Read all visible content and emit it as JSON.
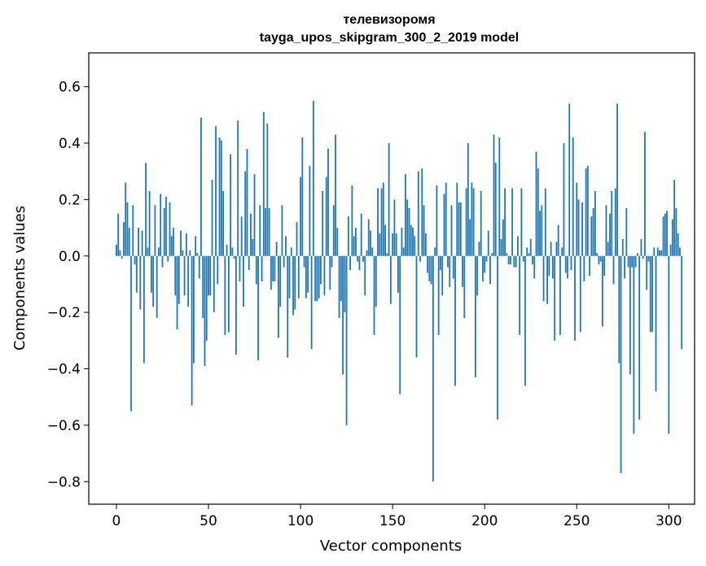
{
  "chart_data": {
    "type": "bar",
    "title_line1": "телевизоромя",
    "title_line2": "tayga_upos_skipgram_300_2_2019 model",
    "xlabel": "Vector components",
    "ylabel": "Components values",
    "xlim": [
      -15,
      314
    ],
    "ylim": [
      -0.88,
      0.72
    ],
    "xticks": [
      0,
      50,
      100,
      150,
      200,
      250,
      300
    ],
    "xtick_labels": [
      "0",
      "50",
      "100",
      "150",
      "200",
      "250",
      "300"
    ],
    "yticks": [
      -0.8,
      -0.6,
      -0.4,
      -0.2,
      0.0,
      0.2,
      0.4,
      0.6
    ],
    "ytick_labels": [
      "−0.8",
      "−0.6",
      "−0.4",
      "−0.2",
      "0.0",
      "0.2",
      "0.4",
      "0.6"
    ],
    "bar_color": "#1f77b4",
    "grid": false,
    "values": [
      0.04,
      0.15,
      0.02,
      -0.01,
      0.12,
      0.26,
      0.19,
      0.1,
      -0.55,
      0.18,
      -0.03,
      -0.13,
      0.1,
      -0.19,
      0.09,
      -0.38,
      0.33,
      0.03,
      0.23,
      -0.13,
      -0.18,
      0.18,
      -0.22,
      0.03,
      0.22,
      -0.04,
      0.17,
      0.21,
      -0.02,
      0.19,
      0.07,
      0.1,
      -0.14,
      -0.26,
      -0.17,
      0.09,
      0.02,
      -0.14,
      0.08,
      -0.18,
      0.02,
      -0.53,
      -0.38,
      0.07,
      0.01,
      -0.08,
      0.49,
      -0.22,
      -0.39,
      -0.3,
      -0.14,
      -0.14,
      0.27,
      -0.2,
      0.46,
      -0.1,
      0.42,
      0.41,
      0.23,
      -0.28,
      0.04,
      -0.27,
      0.36,
      0.03,
      -0.01,
      -0.35,
      0.48,
      -0.09,
      0.14,
      -0.18,
      0.3,
      0.38,
      -0.05,
      0.15,
      0.06,
      0.29,
      -0.1,
      -0.37,
      0.18,
      -0.09,
      0.51,
      0.17,
      0.47,
      0.17,
      -0.12,
      -0.09,
      -0.09,
      0.05,
      -0.29,
      -0.18,
      0.18,
      -0.04,
      0.07,
      -0.36,
      -0.15,
      0.03,
      -0.21,
      -0.19,
      0.12,
      -0.15,
      0.28,
      0.42,
      -0.04,
      -0.15,
      -0.13,
      0.32,
      -0.33,
      0.55,
      -0.16,
      -0.16,
      -0.15,
      -0.1,
      0.23,
      -0.14,
      0.28,
      0.38,
      -0.12,
      -0.04,
      0.18,
      0.43,
      0.1,
      -0.22,
      -0.16,
      -0.42,
      -0.2,
      -0.6,
      0.14,
      -0.05,
      0.25,
      0.07,
      0.1,
      -0.02,
      -0.05,
      0.15,
      -0.02,
      -0.14,
      0.02,
      0.13,
      0.09,
      0.03,
      -0.28,
      -0.18,
      0.24,
      0.08,
      0.24,
      0.26,
      0.11,
      0.01,
      0.4,
      -0.17,
      0.08,
      0.2,
      0.08,
      -0.13,
      -0.49,
      0.1,
      0.03,
      0.29,
      0.2,
      0.17,
      0.11,
      0.1,
      0.07,
      -0.36,
      0.3,
      -0.02,
      0.31,
      0.18,
      0.08,
      -0.06,
      -0.09,
      -0.1,
      -0.8,
      0.03,
      0.25,
      -0.28,
      -0.05,
      -0.14,
      0.22,
      0.26,
      -0.04,
      -0.11,
      0.18,
      -0.08,
      -0.46,
      0.26,
      0.19,
      0.19,
      -0.11,
      -0.22,
      0.24,
      0.4,
      0.13,
      0.26,
      0.24,
      -0.43,
      -0.14,
      0.05,
      0.23,
      -0.09,
      -0.06,
      -0.02,
      0.09,
      -0.1,
      0.01,
      0.43,
      0.33,
      -0.58,
      0.42,
      0.06,
      0.13,
      0.24,
      0.01,
      -0.03,
      -0.03,
      0.24,
      -0.04,
      -0.04,
      0.07,
      -0.28,
      0.24,
      -0.02,
      -0.46,
      0.03,
      0.01,
      0.06,
      -0.03,
      -0.08,
      0.37,
      0.31,
      0.16,
      0.18,
      -0.16,
      0.24,
      -0.17,
      -0.07,
      0.05,
      -0.08,
      -0.3,
      0.05,
      0.11,
      -0.28,
      0.03,
      0.4,
      -0.06,
      -0.08,
      0.54,
      -0.05,
      0.42,
      -0.3,
      0.26,
      0.2,
      -0.27,
      0.19,
      -0.09,
      0.31,
      0.32,
      -0.07,
      0.14,
      0.17,
      0.23,
      0.01,
      -0.03,
      -0.02,
      -0.25,
      -0.07,
      0.18,
      0.05,
      0.15,
      0.23,
      -0.1,
      0.24,
      0.54,
      -0.38,
      -0.77,
      0.06,
      -0.08,
      0.17,
      -0.04,
      -0.42,
      -0.04,
      -0.63,
      -0.04,
      0.01,
      -0.58,
      0.06,
      -0.01,
      0.44,
      -0.12,
      -0.02,
      -0.27,
      -0.27,
      0.03,
      -0.48,
      0.03,
      0.02,
      0.02,
      0.14,
      0.15,
      0.16,
      -0.63,
      0.04,
      0.13,
      0.27,
      0.17,
      0.08,
      0.03,
      -0.33
    ]
  }
}
